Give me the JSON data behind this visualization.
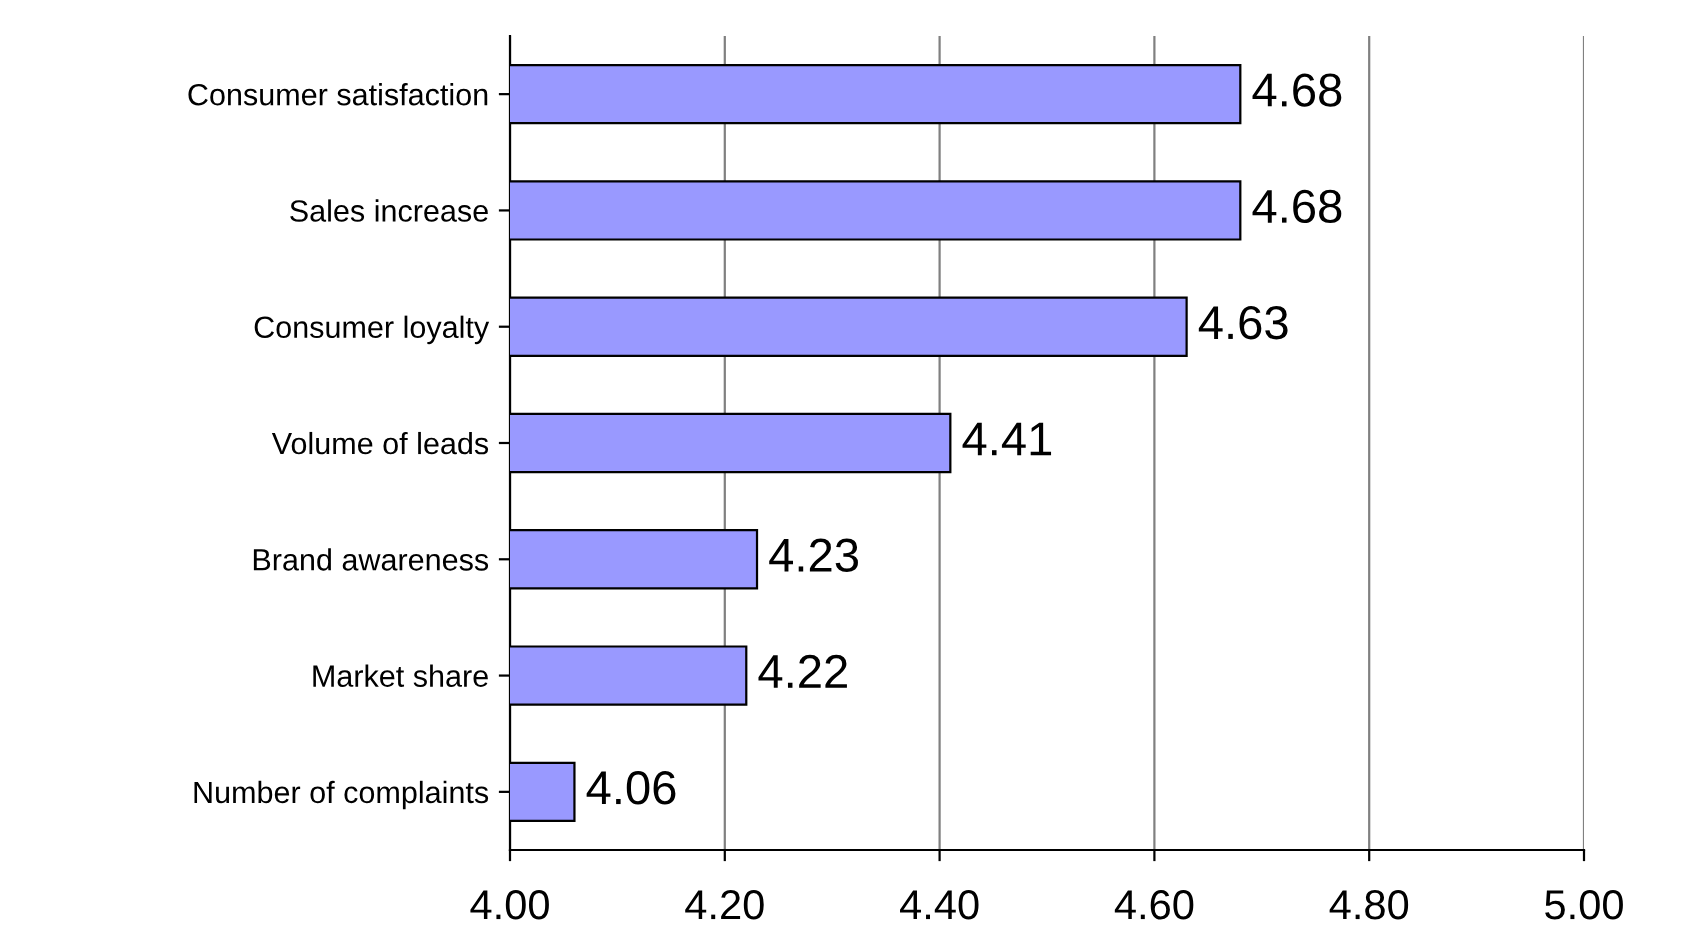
{
  "chart_data": {
    "type": "bar",
    "orientation": "horizontal",
    "categories": [
      "Consumer satisfaction",
      "Sales increase",
      "Consumer loyalty",
      "Volume of leads",
      "Brand awareness",
      "Market share",
      "Number of complaints"
    ],
    "values": [
      4.68,
      4.68,
      4.63,
      4.41,
      4.23,
      4.22,
      4.06
    ],
    "color": "#9999ff",
    "xlim": [
      4.0,
      5.0
    ],
    "xticks": [
      {
        "value": 4.0,
        "label": "4.00"
      },
      {
        "value": 4.2,
        "label": "4.20"
      },
      {
        "value": 4.4,
        "label": "4.40"
      },
      {
        "value": 4.6,
        "label": "4.60"
      },
      {
        "value": 4.8,
        "label": "4.80"
      },
      {
        "value": 5.0,
        "label": "5.00"
      }
    ],
    "grid": "x",
    "data_labels": true,
    "legend": false
  }
}
